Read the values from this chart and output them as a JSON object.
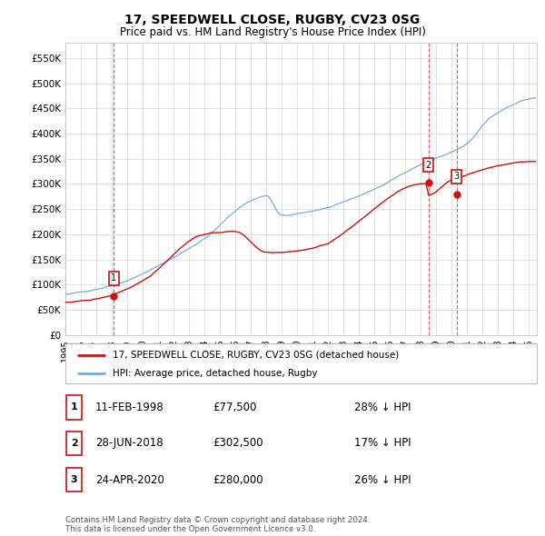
{
  "title": "17, SPEEDWELL CLOSE, RUGBY, CV23 0SG",
  "subtitle": "Price paid vs. HM Land Registry's House Price Index (HPI)",
  "xlim_start": 1995.0,
  "xlim_end": 2025.5,
  "ylim": [
    0,
    580000
  ],
  "yticks": [
    0,
    50000,
    100000,
    150000,
    200000,
    250000,
    300000,
    350000,
    400000,
    450000,
    500000,
    550000
  ],
  "ytick_labels": [
    "£0",
    "£50K",
    "£100K",
    "£150K",
    "£200K",
    "£250K",
    "£300K",
    "£350K",
    "£400K",
    "£450K",
    "£500K",
    "£550K"
  ],
  "sale_dates": [
    1998.12,
    2018.49,
    2020.32
  ],
  "sale_prices": [
    77500,
    302500,
    280000
  ],
  "sale_labels": [
    "1",
    "2",
    "3"
  ],
  "hpi_color": "#7aabdc",
  "price_color": "#cc1111",
  "background_color": "#ffffff",
  "grid_color": "#d8d8d8",
  "legend_label_red": "17, SPEEDWELL CLOSE, RUGBY, CV23 0SG (detached house)",
  "legend_label_blue": "HPI: Average price, detached house, Rugby",
  "table_rows": [
    {
      "label": "1",
      "date": "11-FEB-1998",
      "price": "£77,500",
      "pct": "28% ↓ HPI"
    },
    {
      "label": "2",
      "date": "28-JUN-2018",
      "price": "£302,500",
      "pct": "17% ↓ HPI"
    },
    {
      "label": "3",
      "date": "24-APR-2020",
      "price": "£280,000",
      "pct": "26% ↓ HPI"
    }
  ],
  "footnote": "Contains HM Land Registry data © Crown copyright and database right 2024.\nThis data is licensed under the Open Government Licence v3.0.",
  "xtick_years": [
    1995,
    1996,
    1997,
    1998,
    1999,
    2000,
    2001,
    2002,
    2003,
    2004,
    2005,
    2006,
    2007,
    2008,
    2009,
    2010,
    2011,
    2012,
    2013,
    2014,
    2015,
    2016,
    2017,
    2018,
    2019,
    2020,
    2021,
    2022,
    2023,
    2024,
    2025
  ]
}
